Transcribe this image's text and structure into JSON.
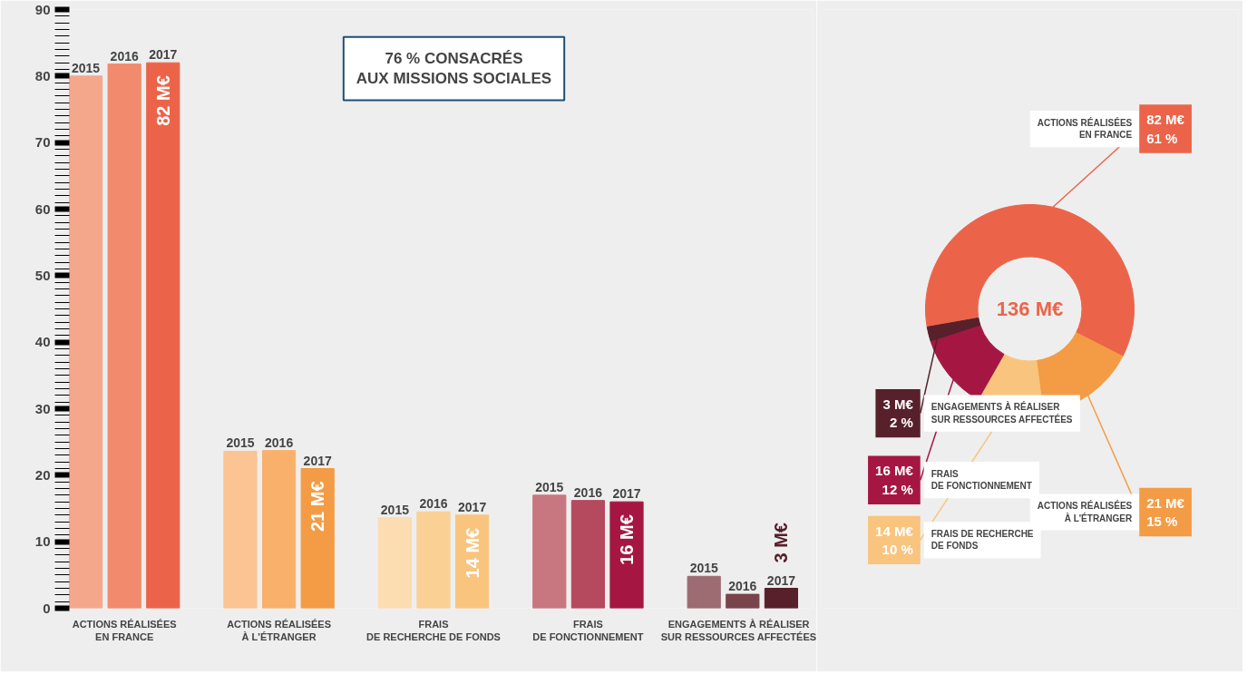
{
  "chart_data": [
    {
      "type": "bar",
      "categories": [
        "ACTIONS RÉALISÉES\nEN FRANCE",
        "ACTIONS RÉALISÉES\nÀ L'ÉTRANGER",
        "FRAIS\nDE RECHERCHE DE FONDS",
        "FRAIS\nDE FONCTIONNEMENT",
        "ENGAGEMENTS À RÉALISER\nSUR RESSOURCES AFFECTÉES"
      ],
      "series": [
        {
          "name": "2015",
          "colors": [
            "#f5a78c",
            "#fbc492",
            "#fcdcb1",
            "#c87680",
            "#9c6c72"
          ],
          "values": [
            80,
            23.6,
            13.6,
            17,
            4.8
          ]
        },
        {
          "name": "2016",
          "colors": [
            "#f28a6e",
            "#f8b06b",
            "#fad095",
            "#b5495e",
            "#7a444c"
          ],
          "values": [
            81.8,
            23.7,
            14.5,
            16.2,
            2.1
          ]
        },
        {
          "name": "2017",
          "colors": [
            "#eb644a",
            "#f39c45",
            "#f9c47e",
            "#a51742",
            "#57202a"
          ],
          "values": [
            82,
            21,
            14,
            16,
            3
          ],
          "value_labels": [
            "82 M€",
            "21 M€",
            "14 M€",
            "16 M€",
            "3 M€"
          ]
        }
      ],
      "ylim": [
        0,
        90
      ],
      "yticks": [
        0,
        10,
        20,
        30,
        40,
        50,
        60,
        70,
        80,
        90
      ],
      "grid": false,
      "annotations": [
        "76 % CONSACRÉS\nAUX MISSIONS SOCIALES"
      ]
    },
    {
      "type": "donut",
      "categories": [
        "ACTIONS RÉALISÉES\nEN FRANCE",
        "ACTIONS RÉALISÉES\nÀ L'ÉTRANGER",
        "FRAIS DE RECHERCHE\nDE FONDS",
        "FRAIS\nDE FONCTIONNEMENT",
        "ENGAGEMENTS À RÉALISER\nSUR RESSOURCES AFFECTÉES"
      ],
      "values": [
        82,
        21,
        14,
        16,
        3
      ],
      "colors": [
        "#eb644a",
        "#f39c45",
        "#f9c47e",
        "#a51742",
        "#57202a"
      ],
      "value_labels": [
        "82 M€\n61 %",
        "21 M€\n15 %",
        "14 M€\n10 %",
        "16 M€\n12 %",
        "3 M€\n2 %"
      ],
      "annotations": [
        "136 M€"
      ]
    }
  ]
}
